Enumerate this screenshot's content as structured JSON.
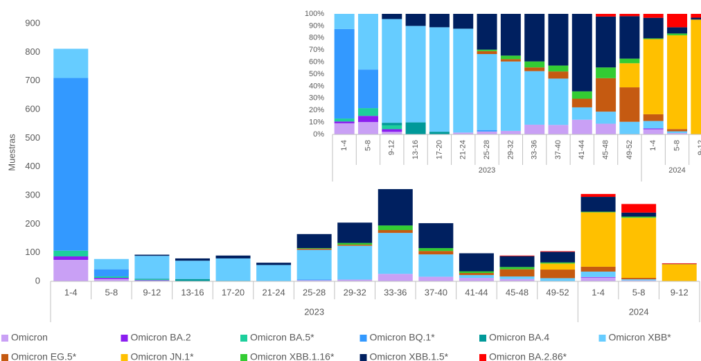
{
  "chart_data": [
    {
      "type": "bar",
      "stacking": "stacked",
      "y_label": "Muestras",
      "categories": [
        "1-4",
        "5-8",
        "9-12",
        "13-16",
        "17-20",
        "21-24",
        "25-28",
        "29-32",
        "33-36",
        "37-40",
        "41-44",
        "45-48",
        "49-52",
        "1-4",
        "5-8",
        "9-12"
      ],
      "groups": [
        "2023",
        "2023",
        "2023",
        "2023",
        "2023",
        "2023",
        "2023",
        "2023",
        "2023",
        "2023",
        "2023",
        "2023",
        "2023",
        "2024",
        "2024",
        "2024"
      ],
      "ylim": [
        0,
        900
      ],
      "yticks": [
        0,
        100,
        200,
        300,
        400,
        500,
        600,
        700,
        800,
        900
      ],
      "series": [
        {
          "name": "Omicron",
          "color": "#c9a0f5",
          "values": [
            75,
            8,
            2,
            0,
            0,
            1,
            4,
            6,
            26,
            16,
            12,
            8,
            0,
            13,
            3,
            0
          ]
        },
        {
          "name": "Omicron BA.2",
          "color": "#8b1ef0",
          "values": [
            12,
            4,
            2,
            0,
            0,
            0,
            0,
            0,
            0,
            0,
            0,
            0,
            0,
            2,
            0,
            0
          ]
        },
        {
          "name": "Omicron BA.5*",
          "color": "#1dcf9c",
          "values": [
            20,
            5,
            3,
            0,
            0,
            0,
            0,
            0,
            0,
            0,
            0,
            0,
            0,
            0,
            0,
            0
          ]
        },
        {
          "name": "Omicron BQ.1*",
          "color": "#3399ff",
          "values": [
            603,
            25,
            0,
            0,
            0,
            0,
            2,
            0,
            0,
            0,
            0,
            0,
            0,
            0,
            0,
            0
          ]
        },
        {
          "name": "Omicron BA.4",
          "color": "#009999",
          "values": [
            0,
            0,
            2,
            8,
            2,
            0,
            0,
            0,
            0,
            0,
            0,
            0,
            0,
            0,
            0,
            0
          ]
        },
        {
          "name": "Omicron XBB*",
          "color": "#66ccff",
          "values": [
            102,
            36,
            80,
            64,
            78,
            56,
            104,
            118,
            143,
            78,
            10,
            9,
            11,
            19,
            4,
            0
          ]
        },
        {
          "name": "Omicron EG.5*",
          "color": "#c55a11",
          "values": [
            0,
            0,
            0,
            0,
            0,
            0,
            4,
            4,
            10,
            12,
            7,
            25,
            30,
            17,
            5,
            0
          ]
        },
        {
          "name": "Omicron JN.1*",
          "color": "#ffc000",
          "values": [
            0,
            0,
            0,
            0,
            0,
            0,
            0,
            0,
            0,
            0,
            0,
            0,
            21,
            190,
            210,
            60
          ]
        },
        {
          "name": "Omicron XBB.1.16*",
          "color": "#33cc33",
          "values": [
            0,
            0,
            0,
            0,
            0,
            0,
            2,
            6,
            16,
            10,
            6,
            8,
            4,
            2,
            4,
            0
          ]
        },
        {
          "name": "Omicron XBB.1.5*",
          "color": "#002060",
          "values": [
            0,
            0,
            4,
            8,
            10,
            8,
            49,
            71,
            127,
            87,
            63,
            38,
            37,
            52,
            14,
            1
          ]
        },
        {
          "name": "Omicron BA.2.86*",
          "color": "#ff0000",
          "values": [
            0,
            0,
            0,
            0,
            0,
            0,
            0,
            0,
            0,
            0,
            0,
            2,
            2,
            10,
            30,
            2
          ]
        }
      ]
    },
    {
      "type": "bar",
      "stacking": "percent",
      "rotate_labels": true,
      "categories": [
        "1-4",
        "5-8",
        "9-12",
        "13-16",
        "17-20",
        "21-24",
        "25-28",
        "29-32",
        "33-36",
        "37-40",
        "41-44",
        "45-48",
        "49-52",
        "1-4",
        "5-8",
        "9-12"
      ],
      "groups": [
        "2023",
        "2023",
        "2023",
        "2023",
        "2023",
        "2023",
        "2023",
        "2023",
        "2023",
        "2023",
        "2023",
        "2023",
        "2023",
        "2024",
        "2024",
        "2024"
      ],
      "ylim": [
        0,
        100
      ],
      "yticks": [
        {
          "value": 0,
          "label": "0%"
        },
        {
          "value": 10,
          "label": "10%"
        },
        {
          "value": 20,
          "label": "20%"
        },
        {
          "value": 30,
          "label": "30%"
        },
        {
          "value": 40,
          "label": "40%"
        },
        {
          "value": 50,
          "label": "50%"
        },
        {
          "value": 60,
          "label": "60%"
        },
        {
          "value": 70,
          "label": "70%"
        },
        {
          "value": 80,
          "label": "80%"
        },
        {
          "value": 90,
          "label": "90%"
        },
        {
          "value": 100,
          "label": "100%"
        }
      ],
      "series": [
        {
          "color": "#c9a0f5",
          "values": [
            75,
            8,
            2,
            0,
            0,
            1,
            4,
            6,
            26,
            16,
            12,
            8,
            0,
            13,
            3,
            0
          ]
        },
        {
          "color": "#8b1ef0",
          "values": [
            12,
            4,
            2,
            0,
            0,
            0,
            0,
            0,
            0,
            0,
            0,
            0,
            0,
            2,
            0,
            0
          ]
        },
        {
          "color": "#1dcf9c",
          "values": [
            20,
            5,
            3,
            0,
            0,
            0,
            0,
            0,
            0,
            0,
            0,
            0,
            0,
            0,
            0,
            0
          ]
        },
        {
          "color": "#3399ff",
          "values": [
            603,
            25,
            0,
            0,
            0,
            0,
            2,
            0,
            0,
            0,
            0,
            0,
            0,
            0,
            0,
            0
          ]
        },
        {
          "color": "#009999",
          "values": [
            0,
            0,
            2,
            8,
            2,
            0,
            0,
            0,
            0,
            0,
            0,
            0,
            0,
            0,
            0,
            0
          ]
        },
        {
          "color": "#66ccff",
          "values": [
            102,
            36,
            80,
            64,
            78,
            56,
            104,
            118,
            143,
            78,
            10,
            9,
            11,
            19,
            4,
            0
          ]
        },
        {
          "color": "#c55a11",
          "values": [
            0,
            0,
            0,
            0,
            0,
            0,
            4,
            4,
            10,
            12,
            7,
            25,
            30,
            17,
            5,
            0
          ]
        },
        {
          "color": "#ffc000",
          "values": [
            0,
            0,
            0,
            0,
            0,
            0,
            0,
            0,
            0,
            0,
            0,
            0,
            21,
            190,
            210,
            60
          ]
        },
        {
          "color": "#33cc33",
          "values": [
            0,
            0,
            0,
            0,
            0,
            0,
            2,
            6,
            16,
            10,
            6,
            8,
            4,
            2,
            4,
            0
          ]
        },
        {
          "color": "#002060",
          "values": [
            0,
            0,
            4,
            8,
            10,
            8,
            49,
            71,
            127,
            87,
            63,
            38,
            37,
            52,
            14,
            1
          ]
        },
        {
          "color": "#ff0000",
          "values": [
            0,
            0,
            0,
            0,
            0,
            0,
            0,
            0,
            0,
            0,
            0,
            2,
            2,
            10,
            30,
            2
          ]
        }
      ]
    }
  ]
}
